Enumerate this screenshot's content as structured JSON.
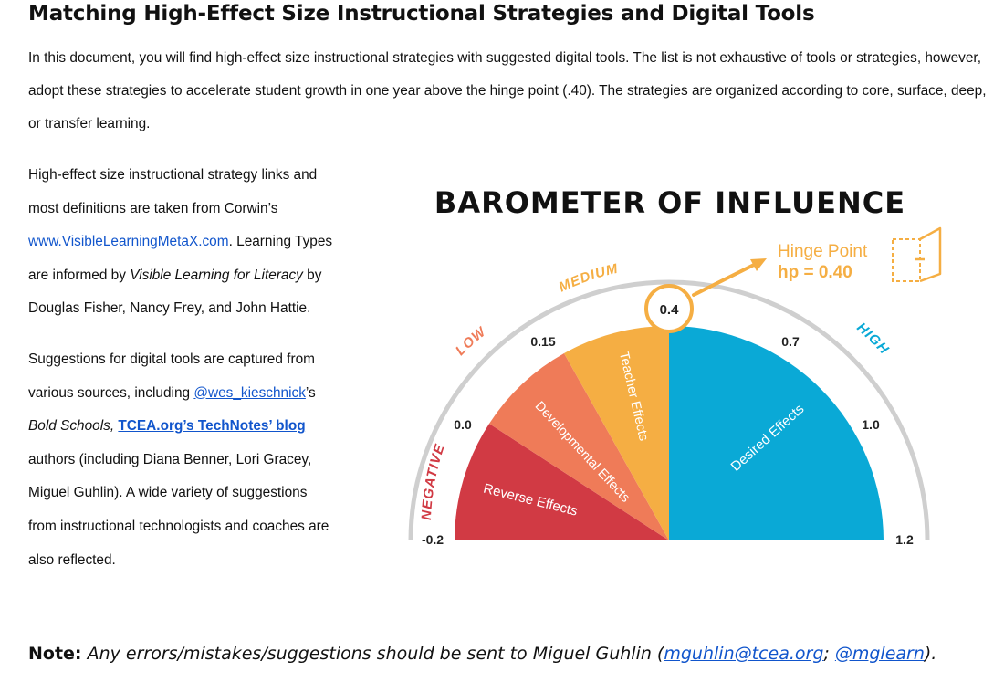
{
  "title": "Matching High-Effect Size Instructional Strategies and Digital Tools",
  "intro": "In this document, you will find high-effect size instructional strategies with suggested digital tools. The list is not exhaustive of tools or strategies, however, adopt these strategies to accelerate student growth in one year above the hinge point (.40). The strategies are organized according to core, surface, deep, or transfer learning.",
  "sidebar": {
    "p1_a": "High-effect size instructional strategy links and most definitions are taken from Corwin’s ",
    "p1_link": "www.VisibleLearningMetaX.com",
    "p1_b": ". Learning Types are informed by ",
    "p1_italic": "Visible Learning for Literacy",
    "p1_c": " by Douglas Fisher, Nancy Frey, and John Hattie.",
    "p2_a": "Suggestions for digital tools are captured from various sources, including ",
    "p2_link1": "@wes_kieschnick",
    "p2_b": "’s ",
    "p2_italic": "Bold Schools, ",
    "p2_link2": "TCEA.org’s TechNotes’ blog",
    "p2_c": " authors (including Diana Benner, Lori Gracey, Miguel Guhlin). A wide variety of suggestions from instructional technologists and coaches are also reflected."
  },
  "gauge": {
    "title": "BAROMETER OF INFLUENCE",
    "hinge_label": "Hinge Point",
    "hinge_value": "hp = 0.40",
    "zones": {
      "negative": "NEGATIVE",
      "low": "LOW",
      "medium": "MEDIUM",
      "high": "HIGH"
    },
    "ticks": {
      "t_neg": "-0.2",
      "t_0": "0.0",
      "t_015": "0.15",
      "t_04": "0.4",
      "t_07": "0.7",
      "t_1": "1.0",
      "t_12": "1.2"
    },
    "segments": {
      "reverse": "Reverse Effects",
      "developmental": "Developmental Effects",
      "teacher": "Teacher Effects",
      "desired": "Desired Effects"
    },
    "colors": {
      "reverse": "#d13a44",
      "developmental": "#ef7b58",
      "teacher": "#f5ae43",
      "desired": "#0aa9d6",
      "negative_label": "#d13a44",
      "low_label": "#ef7b58",
      "medium_label": "#f5ae43",
      "high_label": "#0aa9d6"
    }
  },
  "note": {
    "label": "Note:",
    "text": " Any errors/mistakes/suggestions should be sent to Miguel Guhlin (",
    "email": "mguhlin@tcea.org",
    "sep": ";",
    "handle": "@mglearn",
    "end": ")."
  }
}
